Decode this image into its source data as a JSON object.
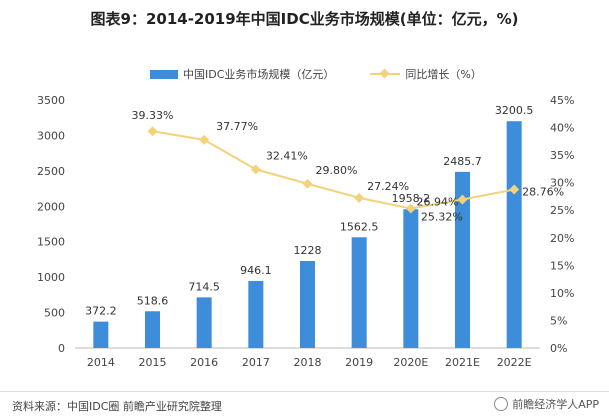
{
  "title": "图表9：2014-2019年中国IDC业务市场规模(单位：亿元，%)",
  "legend": {
    "bar_label": "中国IDC业务市场规模（亿元）",
    "line_label": "同比增长（%）"
  },
  "colors": {
    "bar": "#3d8ddb",
    "line": "#f3d27a"
  },
  "chart_data": {
    "type": "bar",
    "categories": [
      "2014",
      "2015",
      "2016",
      "2017",
      "2018",
      "2019",
      "2020E",
      "2021E",
      "2022E"
    ],
    "series": [
      {
        "name": "中国IDC业务市场规模（亿元）",
        "type": "bar",
        "axis": "left",
        "values": [
          372.2,
          518.6,
          714.5,
          946.1,
          1228,
          1562.5,
          1958.2,
          2485.7,
          3200.5
        ],
        "labels": [
          "372.2",
          "518.6",
          "714.5",
          "946.1",
          "1228",
          "1562.5",
          "1958.2",
          "2485.7",
          "3200.5"
        ]
      },
      {
        "name": "同比增长（%）",
        "type": "line",
        "axis": "right",
        "values": [
          null,
          39.33,
          37.77,
          32.41,
          29.8,
          27.24,
          25.32,
          26.94,
          28.76
        ],
        "labels": [
          "",
          "39.33%",
          "37.77%",
          "32.41%",
          "29.80%",
          "27.24%",
          "25.32%",
          "26.94%",
          "28.76%"
        ]
      }
    ],
    "ylim_left": [
      0,
      3500
    ],
    "yticks_left": [
      "0",
      "500",
      "1000",
      "1500",
      "2000",
      "2500",
      "3000",
      "3500"
    ],
    "ylim_right": [
      0,
      45
    ],
    "yticks_right": [
      "0%",
      "5%",
      "10%",
      "15%",
      "20%",
      "25%",
      "30%",
      "35%",
      "40%",
      "45%"
    ],
    "grid": false,
    "legend_position": "top-center"
  },
  "footer": {
    "source": "资料来源：中国IDC圈 前瞻产业研究院整理",
    "brand": "前瞻经济学人APP"
  }
}
